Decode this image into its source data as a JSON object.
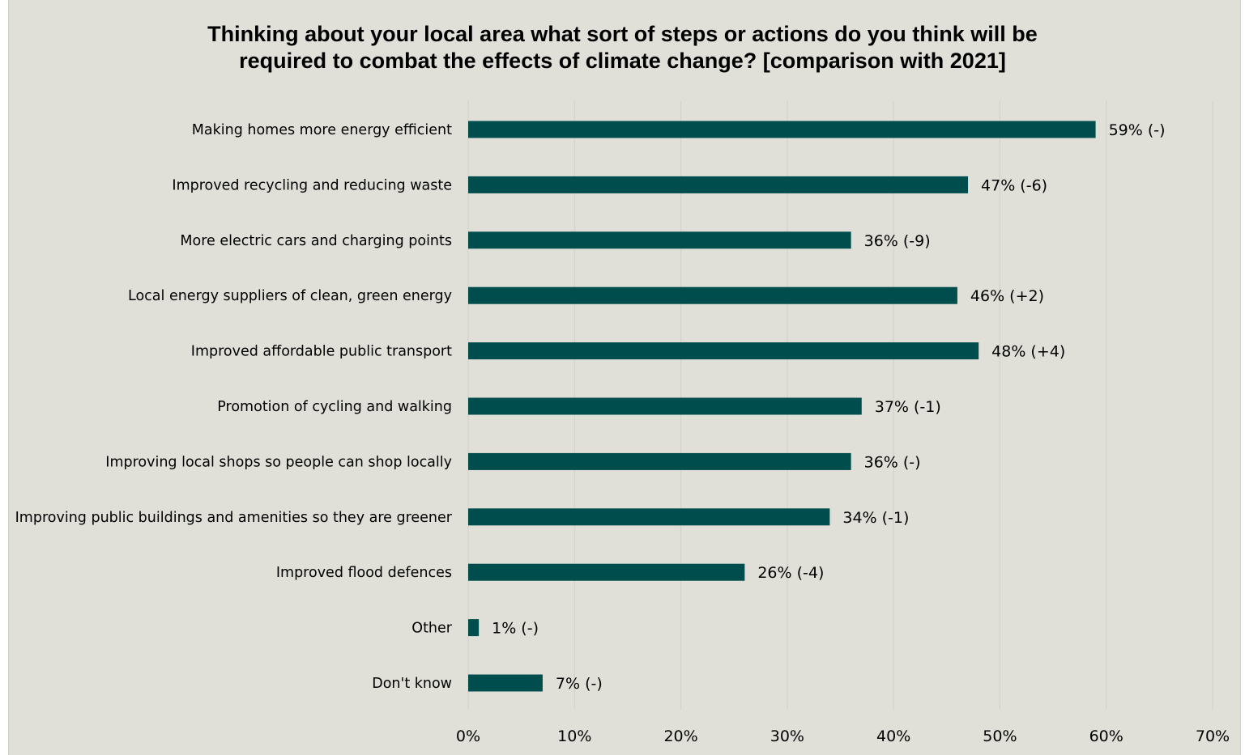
{
  "chart_data": {
    "type": "bar",
    "orientation": "horizontal",
    "title_lines": [
      "Thinking about your local area what sort of steps or actions do you think will be",
      "required to combat the effects of climate change? [comparison with 2021]"
    ],
    "categories": [
      "Making homes more energy efficient",
      "Improved recycling and reducing waste",
      "More electric cars and charging points",
      "Local energy suppliers of clean, green energy",
      "Improved affordable public transport",
      "Promotion of cycling and walking",
      "Improving local shops so people can shop locally",
      "Improving public buildings and amenities so they are greener",
      "Improved flood defences",
      "Other",
      "Don't know"
    ],
    "values": [
      59,
      47,
      36,
      46,
      48,
      37,
      36,
      34,
      26,
      1,
      7
    ],
    "data_labels": [
      "59% (-)",
      "47% (-6)",
      "36% (-9)",
      "46% (+2)",
      "48% (+4)",
      "37% (-1)",
      "36% (-)",
      "34% (-1)",
      "26% (-4)",
      "1% (-)",
      "7% (-)"
    ],
    "x_ticks": [
      "0%",
      "10%",
      "20%",
      "30%",
      "40%",
      "50%",
      "60%",
      "70%"
    ],
    "xlim": [
      0,
      70
    ],
    "grid": "vertical",
    "legend": "none",
    "bar_color": "#004d4d",
    "background_color": "#e0e0d9",
    "gridline_color": "#d3d3cc"
  }
}
